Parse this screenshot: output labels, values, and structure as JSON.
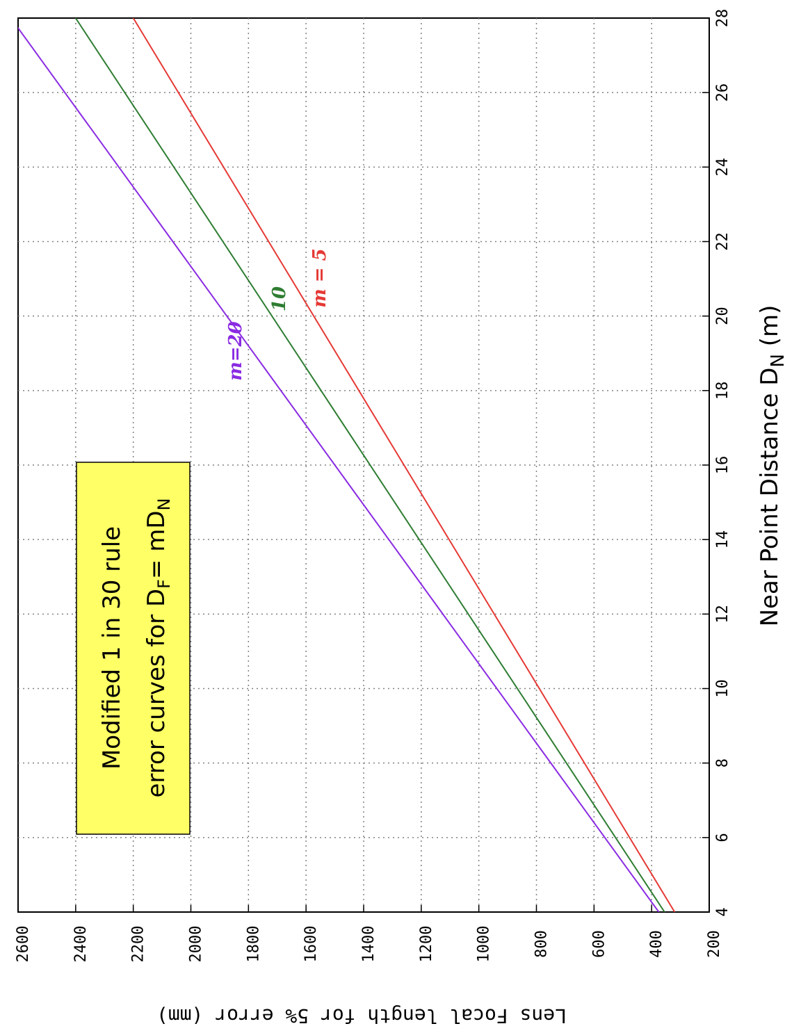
{
  "chart_data": {
    "type": "line",
    "xlabel": "Near Point Distance D",
    "xlabel_sub": "N",
    "xlabel_unit": " (m)",
    "ylabel": "Lens Focal length for 5% error (mm)",
    "xlim": [
      4,
      28
    ],
    "ylim": [
      200,
      2600
    ],
    "x_ticks": [
      "4",
      "6",
      "8",
      "10",
      "12",
      "14",
      "16",
      "18",
      "20",
      "22",
      "24",
      "26",
      "28"
    ],
    "y_ticks": [
      "200",
      "400",
      "600",
      "800",
      "1000",
      "1200",
      "1400",
      "1600",
      "1800",
      "2000",
      "2200",
      "2400",
      "2600"
    ],
    "grid": true,
    "annotation": {
      "line1": "Modified 1 in 30 rule",
      "line2_prefix": "error curves for D",
      "line2_sub1": "F",
      "line2_mid": "= mD",
      "line2_sub2": "N",
      "background": "#ffff66"
    },
    "series": [
      {
        "name": "m=20",
        "label": "m=20",
        "color": "#8a2be2",
        "x": [
          4,
          28
        ],
        "y": [
          375,
          2625
        ]
      },
      {
        "name": "10",
        "label": "10",
        "color": "#2e7d32",
        "x": [
          4,
          28
        ],
        "y": [
          355,
          2400
        ]
      },
      {
        "name": "m = 5",
        "label": "m = 5",
        "color": "#e53935",
        "x": [
          4,
          28
        ],
        "y": [
          320,
          2200
        ]
      }
    ]
  }
}
